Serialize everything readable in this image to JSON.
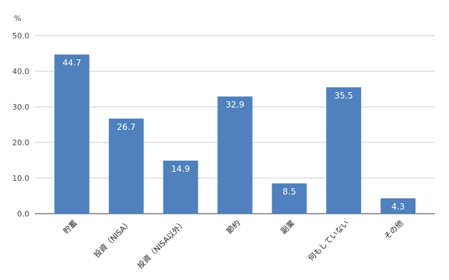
{
  "chart_data": {
    "type": "bar",
    "title": "",
    "xlabel": "",
    "ylabel": "%",
    "categories": [
      "貯蓄",
      "投資（NISA）",
      "投資（NISA以外）",
      "節約",
      "副業",
      "何もしていない",
      "その他"
    ],
    "values": [
      44.7,
      26.7,
      14.9,
      32.9,
      8.5,
      35.5,
      4.3
    ],
    "value_labels": [
      "44.7",
      "26.7",
      "14.9",
      "32.9",
      "8.5",
      "35.5",
      "4.3"
    ],
    "ylim": [
      0,
      50
    ],
    "yticks": [
      "0.0",
      "10.0",
      "20.0",
      "30.0",
      "40.0",
      "50.0"
    ],
    "grid": true,
    "legend": "none",
    "colors": {
      "bar": "#4e81bd",
      "grid": "#cccccc",
      "axis": "#333333",
      "value_label": "#ffffff"
    }
  }
}
